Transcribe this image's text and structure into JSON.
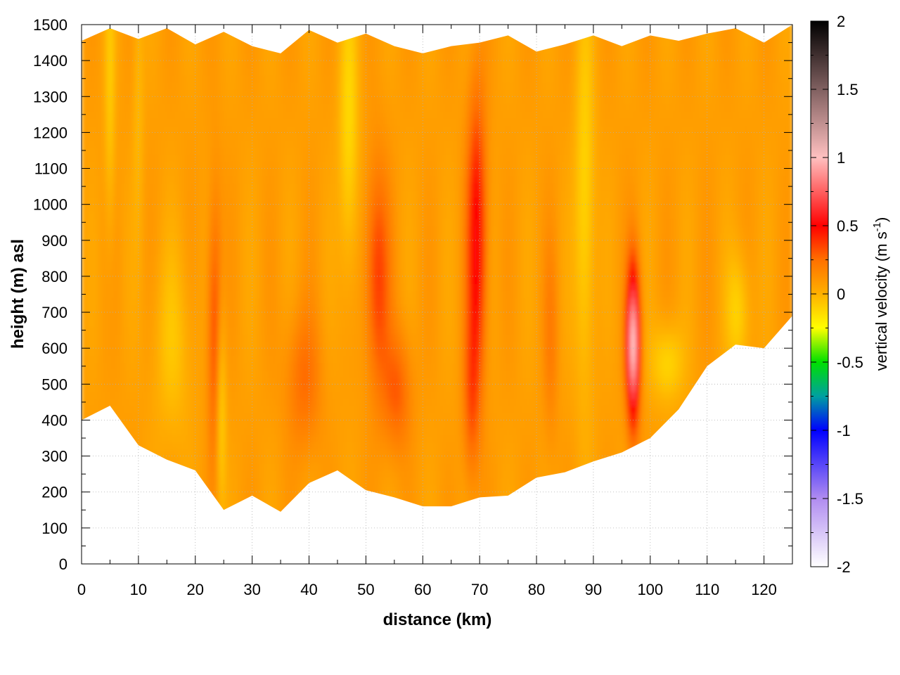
{
  "chart_data": {
    "type": "heatmap",
    "title": "",
    "xlabel": "distance (km)",
    "ylabel": "height (m) asl",
    "xlim": [
      0,
      125
    ],
    "ylim": [
      0,
      1500
    ],
    "x_ticks": [
      0,
      10,
      20,
      30,
      40,
      50,
      60,
      70,
      80,
      90,
      100,
      110,
      120
    ],
    "y_ticks": [
      0,
      100,
      200,
      300,
      400,
      500,
      600,
      700,
      800,
      900,
      1000,
      1100,
      1200,
      1300,
      1400,
      1500
    ],
    "grid": true,
    "colorbar": {
      "label": "vertical velocity (m s",
      "label_sup": "-1",
      "label_end": ")",
      "range": [
        -2,
        2
      ],
      "ticks": [
        2,
        1.5,
        1,
        0.5,
        0,
        -0.5,
        -1,
        -1.5,
        -2
      ],
      "colors": [
        {
          "v": -2.0,
          "c": "#ffffff"
        },
        {
          "v": -1.5,
          "c": "#b08cf0"
        },
        {
          "v": -1.0,
          "c": "#0000ff"
        },
        {
          "v": -0.75,
          "c": "#00a0a0"
        },
        {
          "v": -0.5,
          "c": "#00e000"
        },
        {
          "v": -0.25,
          "c": "#ffff00"
        },
        {
          "v": 0.0,
          "c": "#ffb000"
        },
        {
          "v": 0.25,
          "c": "#ff7000"
        },
        {
          "v": 0.5,
          "c": "#ff0000"
        },
        {
          "v": 1.0,
          "c": "#ffc0c0"
        },
        {
          "v": 1.5,
          "c": "#806060"
        },
        {
          "v": 2.0,
          "c": "#000000"
        }
      ]
    },
    "data_coverage": {
      "distance_km": [
        0,
        5,
        10,
        15,
        20,
        25,
        30,
        35,
        40,
        45,
        50,
        55,
        60,
        65,
        70,
        75,
        80,
        85,
        90,
        95,
        100,
        105,
        110,
        115,
        120,
        125
      ],
      "bottom_m": [
        400,
        440,
        330,
        290,
        260,
        150,
        190,
        145,
        225,
        260,
        205,
        185,
        160,
        160,
        185,
        190,
        240,
        255,
        285,
        310,
        350,
        430,
        550,
        610,
        600,
        690
      ],
      "top_m": [
        1455,
        1490,
        1460,
        1490,
        1445,
        1480,
        1440,
        1420,
        1485,
        1450,
        1475,
        1440,
        1420,
        1440,
        1450,
        1470,
        1425,
        1445,
        1470,
        1440,
        1470,
        1455,
        1475,
        1490,
        1450,
        1500
      ]
    },
    "features": [
      {
        "x": 23.5,
        "y": 650,
        "sx": 0.9,
        "sy": 260,
        "value": 0.3
      },
      {
        "x": 24.5,
        "y": 450,
        "sx": 0.6,
        "sy": 220,
        "value": -0.25
      },
      {
        "x": 39.0,
        "y": 510,
        "sx": 2.2,
        "sy": 140,
        "value": 0.18
      },
      {
        "x": 52.0,
        "y": 800,
        "sx": 1.5,
        "sy": 220,
        "value": 0.3
      },
      {
        "x": 55.5,
        "y": 480,
        "sx": 1.8,
        "sy": 120,
        "value": 0.22
      },
      {
        "x": 69.5,
        "y": 900,
        "sx": 1.2,
        "sy": 280,
        "value": 0.45
      },
      {
        "x": 68.5,
        "y": 450,
        "sx": 1.0,
        "sy": 160,
        "value": 0.2
      },
      {
        "x": 97.0,
        "y": 610,
        "sx": 0.8,
        "sy": 150,
        "value": 0.95
      },
      {
        "x": 82.5,
        "y": 620,
        "sx": 0.9,
        "sy": 200,
        "value": 0.12
      },
      {
        "x": 88.5,
        "y": 1000,
        "sx": 1.2,
        "sy": 400,
        "value": -0.2
      },
      {
        "x": 47.0,
        "y": 1200,
        "sx": 1.2,
        "sy": 300,
        "value": -0.2
      },
      {
        "x": 115.5,
        "y": 700,
        "sx": 1.5,
        "sy": 120,
        "value": -0.18
      },
      {
        "x": 16.0,
        "y": 600,
        "sx": 2.5,
        "sy": 200,
        "value": -0.12
      },
      {
        "x": 103.0,
        "y": 560,
        "sx": 2.0,
        "sy": 80,
        "value": -0.2
      },
      {
        "x": 5.0,
        "y": 1300,
        "sx": 0.6,
        "sy": 300,
        "value": -0.15
      },
      {
        "x": 10.0,
        "y": 1300,
        "sx": 0.6,
        "sy": 300,
        "value": -0.1
      }
    ]
  }
}
